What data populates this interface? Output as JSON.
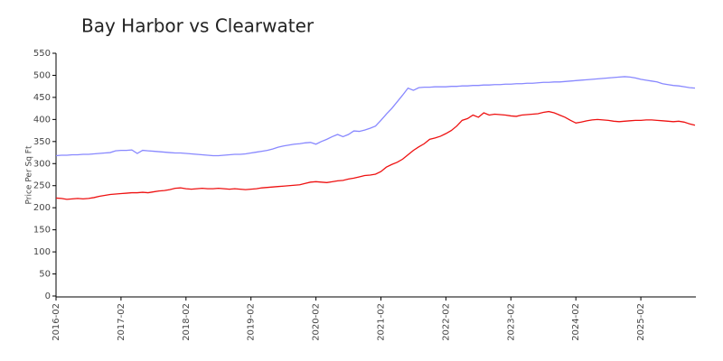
{
  "chart_data": {
    "type": "line",
    "title": "Bay Harbor vs Clearwater",
    "y_label": "Price Per Sq Ft",
    "x": [
      "2016-02",
      "2016-03",
      "2016-04",
      "2016-05",
      "2016-06",
      "2016-07",
      "2016-08",
      "2016-09",
      "2016-10",
      "2016-11",
      "2016-12",
      "2017-01",
      "2017-02",
      "2017-03",
      "2017-04",
      "2017-05",
      "2017-06",
      "2017-07",
      "2017-08",
      "2017-09",
      "2017-10",
      "2017-11",
      "2017-12",
      "2018-01",
      "2018-02",
      "2018-03",
      "2018-04",
      "2018-05",
      "2018-06",
      "2018-07",
      "2018-08",
      "2018-09",
      "2018-10",
      "2018-11",
      "2018-12",
      "2019-01",
      "2019-02",
      "2019-03",
      "2019-04",
      "2019-05",
      "2019-06",
      "2019-07",
      "2019-08",
      "2019-09",
      "2019-10",
      "2019-11",
      "2019-12",
      "2020-01",
      "2020-02",
      "2020-03",
      "2020-04",
      "2020-05",
      "2020-06",
      "2020-07",
      "2020-08",
      "2020-09",
      "2020-10",
      "2020-11",
      "2020-12",
      "2021-01",
      "2021-02",
      "2021-03",
      "2021-04",
      "2021-05",
      "2021-06",
      "2021-07",
      "2021-08",
      "2021-09",
      "2021-10",
      "2021-11",
      "2021-12",
      "2022-01",
      "2022-02",
      "2022-03",
      "2022-04",
      "2022-05",
      "2022-06",
      "2022-07",
      "2022-08",
      "2022-09",
      "2022-10",
      "2022-11",
      "2022-12",
      "2023-01",
      "2023-02",
      "2023-03",
      "2023-04",
      "2023-05",
      "2023-06",
      "2023-07",
      "2023-08",
      "2023-09",
      "2023-10",
      "2023-11",
      "2023-12",
      "2024-01",
      "2024-02",
      "2024-03",
      "2024-04",
      "2024-05",
      "2024-06",
      "2024-07",
      "2024-08",
      "2024-09",
      "2024-10",
      "2024-11",
      "2024-12",
      "2025-01",
      "2025-02",
      "2025-03",
      "2025-04",
      "2025-05",
      "2025-06",
      "2025-07",
      "2025-08",
      "2025-09",
      "2025-10",
      "2025-11",
      "2025-12"
    ],
    "series": [
      {
        "color": "#8888ff",
        "values": [
          318,
          319,
          319,
          320,
          320,
          321,
          321,
          322,
          323,
          324,
          325,
          329,
          330,
          330,
          331,
          323,
          330,
          329,
          328,
          327,
          326,
          325,
          324,
          324,
          323,
          322,
          321,
          320,
          319,
          318,
          318,
          319,
          320,
          321,
          321,
          322,
          324,
          326,
          328,
          330,
          333,
          337,
          340,
          342,
          344,
          345,
          347,
          348,
          344,
          350,
          355,
          361,
          366,
          361,
          366,
          374,
          373,
          376,
          380,
          385,
          398,
          412,
          425,
          440,
          455,
          471,
          466,
          472,
          473,
          473,
          474,
          474,
          474,
          475,
          475,
          476,
          476,
          477,
          477,
          478,
          478,
          479,
          479,
          480,
          480,
          481,
          481,
          482,
          482,
          483,
          484,
          484,
          485,
          485,
          486,
          487,
          488,
          489,
          490,
          491,
          492,
          493,
          494,
          495,
          496,
          497,
          496,
          494,
          491,
          489,
          487,
          485,
          481,
          479,
          477,
          476,
          474,
          472,
          471
        ]
      },
      {
        "color": "#ee1111",
        "values": [
          222,
          221,
          219,
          220,
          221,
          220,
          221,
          223,
          226,
          228,
          230,
          231,
          232,
          233,
          234,
          234,
          235,
          234,
          236,
          238,
          239,
          241,
          244,
          245,
          243,
          242,
          243,
          244,
          243,
          243,
          244,
          243,
          242,
          243,
          242,
          241,
          242,
          243,
          245,
          246,
          247,
          248,
          249,
          250,
          251,
          252,
          255,
          258,
          259,
          258,
          257,
          259,
          261,
          262,
          265,
          267,
          270,
          273,
          274,
          276,
          282,
          292,
          298,
          303,
          310,
          320,
          330,
          338,
          345,
          355,
          358,
          362,
          368,
          375,
          385,
          398,
          402,
          410,
          405,
          415,
          410,
          412,
          411,
          410,
          408,
          407,
          410,
          411,
          412,
          413,
          416,
          418,
          415,
          410,
          405,
          398,
          392,
          394,
          397,
          399,
          400,
          399,
          398,
          396,
          395,
          396,
          397,
          398,
          398,
          399,
          399,
          398,
          397,
          396,
          395,
          396,
          394,
          390,
          387
        ]
      }
    ],
    "xticks": [
      "2016-02",
      "2017-02",
      "2018-02",
      "2019-02",
      "2020-02",
      "2021-02",
      "2022-02",
      "2023-02",
      "2024-02",
      "2025-02"
    ],
    "ylim": [
      0,
      550
    ],
    "yticks": [
      0,
      50,
      100,
      150,
      200,
      250,
      300,
      350,
      400,
      450,
      500,
      550
    ]
  }
}
